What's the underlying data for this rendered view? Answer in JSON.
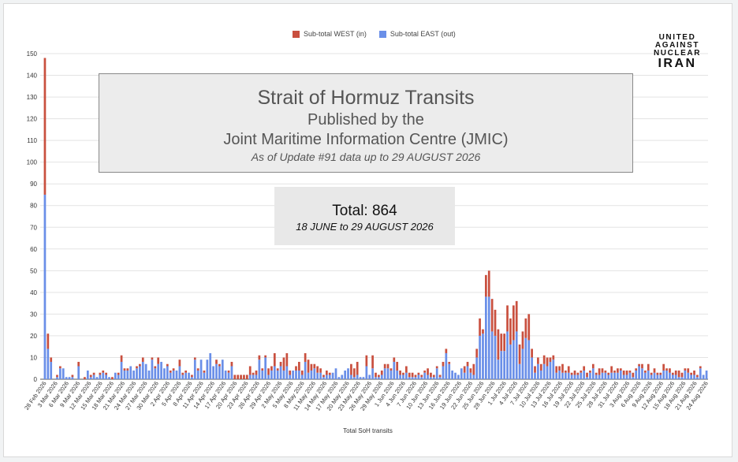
{
  "legend": {
    "west_label": "Sub-total WEST (in)",
    "east_label": "Sub-total EAST (out)"
  },
  "logo": {
    "line1": "UNITED",
    "line2": "AGAINST",
    "line3": "NUCLEAR",
    "line4": "IRAN"
  },
  "title_box": {
    "line1": "Strait of Hormuz Transits",
    "line2": "Published by the",
    "line3": "Joint Maritime Information Centre (JMIC)",
    "line4": "As of Update #91 data up to 29 AUGUST 2026"
  },
  "total_box": {
    "value": "Total: 864",
    "range": "18 JUNE to 29 AUGUST 2026"
  },
  "chart_data": {
    "type": "bar",
    "stacked": true,
    "xlabel": "Total SoH transits",
    "ylim": [
      0,
      150
    ],
    "yticks": [
      0,
      10,
      20,
      30,
      40,
      50,
      60,
      70,
      80,
      90,
      100,
      110,
      120,
      130,
      140,
      150
    ],
    "grid": true,
    "legend_position": "top",
    "x_tick_labels": [
      "28 Feb 2026",
      "3 Mar 2026",
      "6 Mar 2026",
      "9 Mar 2026",
      "12 Mar 2026",
      "15 Mar 2026",
      "18 Mar 2026",
      "21 Mar 2026",
      "24 Mar 2026",
      "27 Mar 2026",
      "30 Mar 2026",
      "2 Apr 2026",
      "5 Apr 2026",
      "8 Apr 2026",
      "11 Apr 2026",
      "14 Apr 2026",
      "17 Apr 2026",
      "20 Apr 2026",
      "23 Apr 2026",
      "26 Apr 2026",
      "29 Apr 2026",
      "2 May 2026",
      "5 May 2026",
      "8 May 2026",
      "11 May 2026",
      "14 May 2026",
      "17 May 2026",
      "20 May 2026",
      "23 May 2026",
      "26 May 2026",
      "29 May 2026",
      "1 Jun 2026",
      "4 Jun 2026",
      "7 Jun 2026",
      "10 Jun 2026",
      "13 Jun 2026",
      "16 Jun 2026",
      "19 Jun 2026",
      "22 Jun 2026",
      "25 Jun 2026",
      "28 Jun 2026",
      "1 Jul 2026",
      "4 Jul 2026",
      "7 Jul 2026",
      "10 Jul 2026",
      "13 Jul 2026",
      "16 Jul 2026",
      "19 Jul 2026",
      "22 Jul 2026",
      "25 Jul 2026",
      "28 Jul 2026",
      "31 Jul 2026",
      "3 Aug 2026",
      "6 Aug 2026",
      "9 Aug 2026",
      "12 Aug 2026",
      "15 Aug 2026",
      "18 Aug 2026",
      "21 Aug 2026",
      "24 Aug 2026"
    ],
    "colors": {
      "west": "#c9503f",
      "east": "#6a8fe8"
    },
    "series": [
      {
        "name": "Sub-total WEST (in)",
        "values": [
          63,
          7,
          2,
          0,
          1,
          1,
          0,
          0,
          0,
          1,
          0,
          2,
          0,
          1,
          0,
          1,
          1,
          0,
          1,
          1,
          1,
          0,
          1,
          0,
          1,
          3,
          1,
          1,
          0,
          0,
          1,
          1,
          2,
          0,
          0,
          1,
          1,
          3,
          0,
          0,
          1,
          1,
          1,
          0,
          3,
          1,
          1,
          0,
          1,
          1,
          1,
          0,
          1,
          0,
          0,
          0,
          2,
          1,
          0,
          0,
          1,
          2,
          2,
          2,
          2,
          2,
          2,
          4,
          1,
          2,
          2,
          1,
          1,
          3,
          2,
          6,
          1,
          2,
          6,
          6,
          2,
          0,
          2,
          4,
          2,
          4,
          6,
          3,
          2,
          3,
          2,
          1,
          2,
          1,
          0,
          0,
          0,
          0,
          0,
          0,
          5,
          4,
          6,
          0,
          0,
          5,
          0,
          6,
          2,
          1,
          2,
          2,
          2,
          1,
          2,
          4,
          2,
          1,
          3,
          2,
          2,
          1,
          1,
          1,
          1,
          3,
          2,
          1,
          1,
          1,
          2,
          2,
          1,
          0,
          0,
          0,
          0,
          3,
          2,
          2,
          5,
          4,
          8,
          2,
          10,
          12,
          15,
          12,
          14,
          8,
          8,
          12,
          12,
          16,
          14,
          9,
          8,
          9,
          12,
          4,
          3,
          3,
          3,
          4,
          4,
          2,
          2,
          3,
          2,
          4,
          1,
          3,
          1,
          2,
          1,
          1,
          2,
          2,
          1,
          2,
          1,
          3,
          2,
          1,
          1,
          3,
          1,
          2,
          1,
          2,
          2,
          1,
          2,
          1,
          1,
          2,
          1,
          3,
          1,
          2,
          1,
          1,
          3,
          1,
          2,
          1,
          2,
          3,
          2,
          1,
          2,
          1,
          2,
          1,
          1
        ]
      },
      {
        "name": "Sub-total EAST (out)",
        "values": [
          85,
          14,
          8,
          0,
          1,
          5,
          5,
          1,
          1,
          1,
          0,
          6,
          0,
          0,
          4,
          1,
          2,
          1,
          2,
          3,
          2,
          1,
          0,
          3,
          2,
          8,
          4,
          4,
          6,
          4,
          5,
          6,
          8,
          7,
          4,
          9,
          5,
          7,
          8,
          5,
          6,
          3,
          4,
          4,
          6,
          2,
          3,
          3,
          1,
          9,
          4,
          9,
          3,
          9,
          12,
          6,
          7,
          6,
          9,
          4,
          3,
          6,
          0,
          0,
          0,
          0,
          0,
          2,
          2,
          2,
          9,
          4,
          10,
          2,
          4,
          6,
          4,
          6,
          4,
          6,
          2,
          4,
          4,
          4,
          2,
          8,
          3,
          4,
          5,
          3,
          3,
          1,
          2,
          2,
          3,
          5,
          1,
          2,
          4,
          5,
          2,
          1,
          2,
          1,
          1,
          6,
          2,
          5,
          1,
          1,
          2,
          5,
          5,
          4,
          8,
          4,
          2,
          2,
          3,
          1,
          1,
          1,
          2,
          1,
          3,
          2,
          1,
          1,
          5,
          1,
          6,
          12,
          7,
          4,
          3,
          2,
          5,
          3,
          6,
          3,
          2,
          10,
          20,
          21,
          38,
          38,
          22,
          20,
          9,
          13,
          13,
          22,
          16,
          18,
          22,
          7,
          14,
          19,
          18,
          10,
          3,
          7,
          4,
          7,
          6,
          8,
          9,
          3,
          4,
          3,
          3,
          3,
          2,
          2,
          2,
          3,
          4,
          1,
          3,
          5,
          2,
          2,
          3,
          3,
          2,
          3,
          3,
          3,
          4,
          2,
          2,
          3,
          1,
          4,
          6,
          5,
          3,
          4,
          2,
          3,
          2,
          2,
          4,
          4,
          3,
          2,
          2,
          1,
          1,
          4,
          3,
          2,
          2,
          1,
          5,
          2,
          4
        ]
      }
    ]
  }
}
